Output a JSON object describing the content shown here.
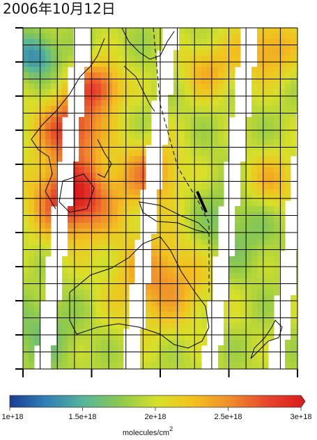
{
  "title": "2006年10月12日",
  "colorbar": {
    "ticks": [
      {
        "value": 1e+18,
        "label": "1e+18"
      },
      {
        "value": 1.5e+18,
        "label": "1.5e+18"
      },
      {
        "value": 2e+18,
        "label": "2e+18"
      },
      {
        "value": 2.5e+18,
        "label": "2.5e+18"
      },
      {
        "value": 3e+18,
        "label": "3e+18"
      }
    ],
    "unit": {
      "text": "molecules/cm",
      "superscript": "2"
    }
  }
}
